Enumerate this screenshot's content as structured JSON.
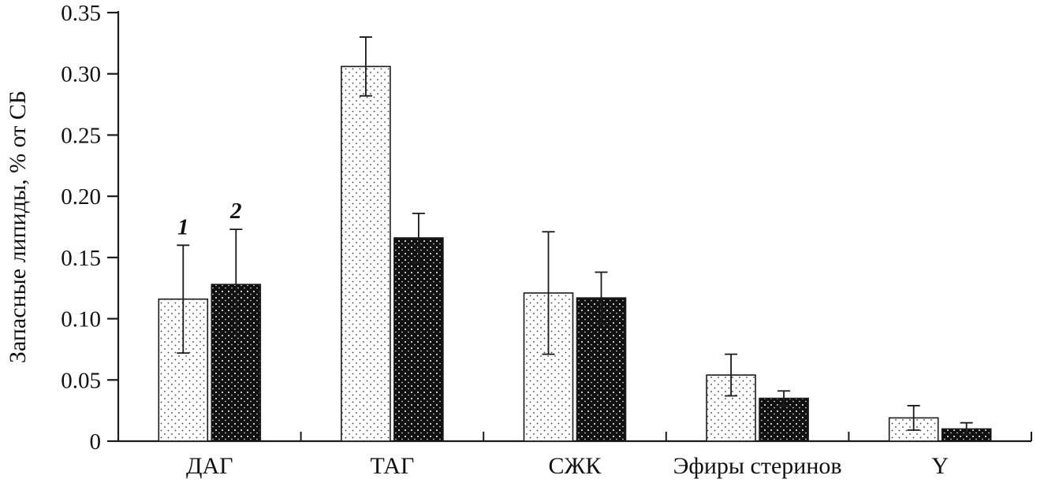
{
  "chart_data": {
    "type": "bar",
    "title": "",
    "ylabel": "Запасные липиды, % от СБ",
    "xlabel": "",
    "ylim": [
      0,
      0.35
    ],
    "ytick_step": 0.05,
    "ytick_labels": [
      "0",
      "0.05",
      "0.10",
      "0.15",
      "0.20",
      "0.25",
      "0.30",
      "0.35"
    ],
    "categories": [
      "ДАГ",
      "ТАГ",
      "СЖК",
      "Эфиры стеринов",
      "Y"
    ],
    "series": [
      {
        "name": "1",
        "pattern": "light-dots",
        "values": [
          0.116,
          0.306,
          0.121,
          0.054,
          0.019
        ],
        "errors": [
          0.044,
          0.024,
          0.05,
          0.017,
          0.01
        ]
      },
      {
        "name": "2",
        "pattern": "dark-dots",
        "values": [
          0.128,
          0.166,
          0.117,
          0.035,
          0.01
        ],
        "errors": [
          0.045,
          0.02,
          0.021,
          0.006,
          0.005
        ]
      }
    ],
    "legend": {
      "position": "above-first-group",
      "entries": [
        "1",
        "2"
      ]
    },
    "grid": false,
    "colors": {
      "axis": "#1a1a1a",
      "bar_light_bg": "#ffffff",
      "bar_dark_bg": "#101010",
      "dot_on_light": "#3a3a3a",
      "dot_on_dark": "#ffffff"
    }
  }
}
